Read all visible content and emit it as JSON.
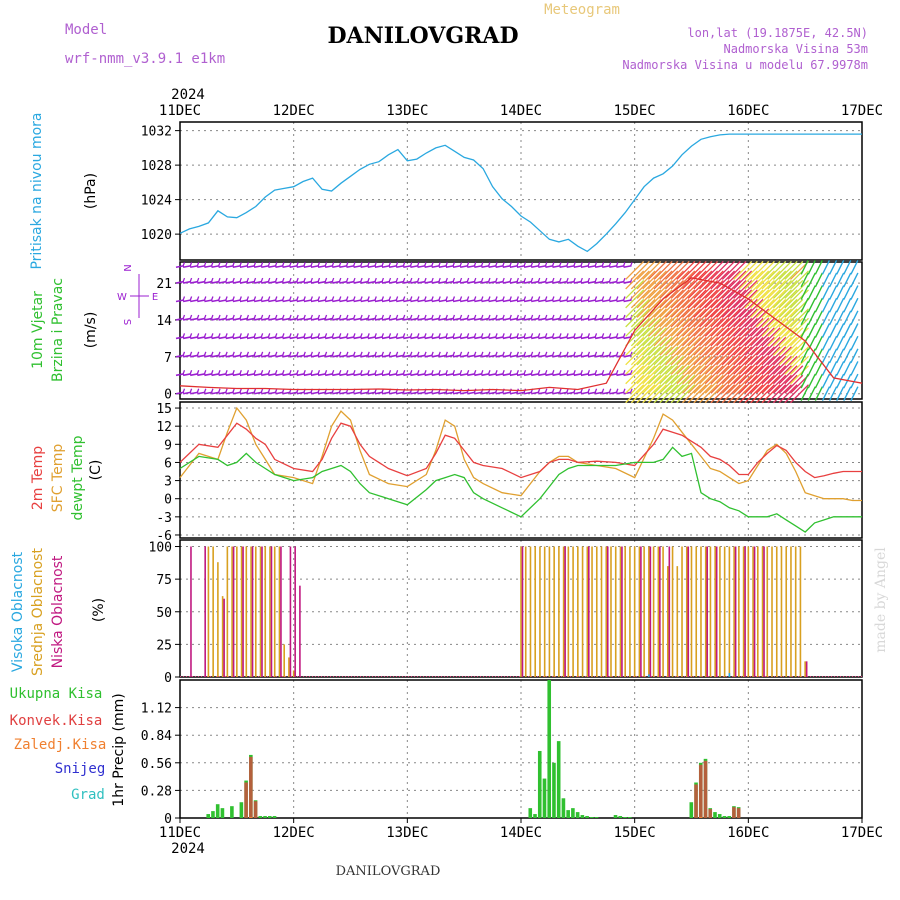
{
  "header": {
    "model_label": "Model",
    "model_name": "wrf-nmm_v3.9.1 e1km",
    "title": "DANILOVGRAD",
    "meteogram_label": "Meteogram",
    "lonlat": "lon,lat (19.1875E, 42.5N)",
    "elevation": "Nadmorska Visina 53m",
    "model_elevation": "Nadmorska Visina u modelu 67.9978m",
    "year_top": "2024",
    "year_bottom": "2024",
    "footer_title": "DANILOVGRAD",
    "credit": "made by Angel"
  },
  "colors": {
    "pressure": "#2aa8e0",
    "wind_barb": "#9b1fd0",
    "wind_speed": "#e03030",
    "temp_2m": "#e84040",
    "temp_sfc": "#e0a030",
    "dewpoint": "#30c030",
    "cloud_high": "#2aa8e0",
    "cloud_mid": "#d8a020",
    "cloud_low": "#c01880",
    "precip_total": "#30c030",
    "precip_conv": "#e04040",
    "precip_frozen": "#f08030",
    "snow": "#3030d0",
    "hail": "#30c0c0",
    "grid": "#888888"
  },
  "chart_data": [
    {
      "type": "line",
      "title": "Pritisak na nivou mora",
      "ylabel": "(hPa)",
      "ylim": [
        1017,
        1033
      ],
      "yticks": [
        "1020",
        "1024",
        "1028",
        "1032"
      ],
      "x_tick_labels": [
        "11DEC",
        "12DEC",
        "13DEC",
        "14DEC",
        "15DEC",
        "16DEC",
        "17DEC"
      ],
      "x_hours_range": [
        0,
        144
      ],
      "grid": true,
      "series": [
        {
          "name": "Pritisak na nivou mora",
          "x": [
            0,
            2,
            4,
            6,
            8,
            10,
            12,
            14,
            16,
            18,
            20,
            22,
            24,
            26,
            28,
            30,
            32,
            34,
            36,
            38,
            40,
            42,
            44,
            46,
            48,
            50,
            52,
            54,
            56,
            58,
            60,
            62,
            64,
            66,
            68,
            70,
            72,
            74,
            76,
            78,
            80,
            82,
            84,
            86,
            88,
            90,
            92,
            94,
            96,
            98,
            100,
            102,
            104,
            106,
            108,
            110,
            112,
            114,
            116,
            118,
            120,
            122,
            124,
            126,
            128,
            130,
            132,
            134,
            136,
            138,
            140,
            142,
            144
          ],
          "values": [
            1020.1,
            1020.6,
            1020.9,
            1021.3,
            1022.7,
            1022.0,
            1021.9,
            1022.5,
            1023.2,
            1024.3,
            1025.1,
            1025.3,
            1025.5,
            1026.1,
            1026.5,
            1025.2,
            1025.0,
            1025.9,
            1026.7,
            1027.5,
            1028.1,
            1028.4,
            1029.2,
            1029.8,
            1028.5,
            1028.7,
            1029.4,
            1030.0,
            1030.3,
            1029.6,
            1028.9,
            1028.6,
            1027.6,
            1025.5,
            1024.1,
            1023.2,
            1022.1,
            1021.4,
            1020.4,
            1019.4,
            1019.1,
            1019.4,
            1018.6,
            1018.0,
            1018.9,
            1020.0,
            1021.2,
            1022.5,
            1024.0,
            1025.5,
            1026.5,
            1027.0,
            1027.9,
            1029.2,
            1030.2,
            1031.0,
            1031.3,
            1031.5,
            1031.6,
            1031.6,
            1031.6,
            1031.6,
            1031.6,
            1031.6,
            1031.6,
            1031.6,
            1031.6,
            1031.6,
            1031.6,
            1031.6,
            1031.6,
            1031.6,
            1031.6
          ]
        }
      ]
    },
    {
      "type": "line",
      "title": "10m Vjetar Brzina i Pravac",
      "ylabel": "(m/s)",
      "ylim": [
        -1,
        25
      ],
      "yticks": [
        "0",
        "7",
        "14",
        "21"
      ],
      "compass": {
        "n": "N",
        "e": "E",
        "w": "W",
        "s": "S"
      },
      "grid": true,
      "series": [
        {
          "name": "10m Vjetar Brzina",
          "x": [
            0,
            6,
            12,
            18,
            24,
            30,
            36,
            42,
            48,
            54,
            60,
            66,
            72,
            78,
            84,
            90,
            96,
            102,
            108,
            114,
            120,
            126,
            132,
            138,
            144
          ],
          "values": [
            1.5,
            1.2,
            1.0,
            1.0,
            0.8,
            0.8,
            0.8,
            0.9,
            0.7,
            0.8,
            0.6,
            0.8,
            0.6,
            1.2,
            0.8,
            2.0,
            12.0,
            18.0,
            22.0,
            21.0,
            18.0,
            14.0,
            10.0,
            3.0,
            2.0
          ]
        }
      ]
    },
    {
      "type": "line",
      "ylabel": "(C)",
      "ylim": [
        -6.5,
        16
      ],
      "yticks": [
        "-6",
        "-3",
        "0",
        "3",
        "6",
        "9",
        "12",
        "15"
      ],
      "grid": true,
      "series": [
        {
          "name": "2m Temp",
          "x": [
            0,
            4,
            8,
            10,
            12,
            14,
            16,
            18,
            20,
            24,
            28,
            30,
            32,
            34,
            36,
            38,
            40,
            44,
            48,
            52,
            54,
            56,
            58,
            60,
            62,
            64,
            68,
            72,
            76,
            78,
            80,
            82,
            84,
            88,
            92,
            96,
            100,
            102,
            104,
            106,
            108,
            110,
            112,
            114,
            116,
            118,
            120,
            122,
            124,
            126,
            128,
            130,
            132,
            134,
            136,
            138,
            140,
            142,
            144
          ],
          "values": [
            6.0,
            9.0,
            8.5,
            10.5,
            12.5,
            11.5,
            10.0,
            9.0,
            6.5,
            5.0,
            4.5,
            6.5,
            10.0,
            12.5,
            12.0,
            9.0,
            7.0,
            5.0,
            3.8,
            5.0,
            7.5,
            10.5,
            10.0,
            8.0,
            6.0,
            5.5,
            5.0,
            3.5,
            4.5,
            6.0,
            6.5,
            6.5,
            6.0,
            6.2,
            6.0,
            5.5,
            9.0,
            11.5,
            11.0,
            10.5,
            9.5,
            8.5,
            7.0,
            6.5,
            5.5,
            4.0,
            4.0,
            6.0,
            7.5,
            8.8,
            8.0,
            6.0,
            4.5,
            3.5,
            3.8,
            4.2,
            4.5,
            4.5,
            4.5
          ]
        },
        {
          "name": "SFC Temp",
          "x": [
            0,
            4,
            8,
            10,
            12,
            14,
            16,
            18,
            20,
            24,
            28,
            30,
            32,
            34,
            36,
            38,
            40,
            44,
            48,
            52,
            54,
            56,
            58,
            60,
            62,
            64,
            68,
            72,
            76,
            78,
            80,
            82,
            84,
            88,
            92,
            96,
            100,
            102,
            104,
            106,
            108,
            110,
            112,
            114,
            116,
            118,
            120,
            122,
            124,
            126,
            128,
            130,
            132,
            134,
            136,
            138,
            140,
            142,
            144
          ],
          "values": [
            3.5,
            7.5,
            6.5,
            11.0,
            15.0,
            13.0,
            9.0,
            6.5,
            4.0,
            3.5,
            2.5,
            7.0,
            12.0,
            14.5,
            13.0,
            8.0,
            4.0,
            2.5,
            2.0,
            4.0,
            8.0,
            13.0,
            12.0,
            6.5,
            3.5,
            2.5,
            1.0,
            0.5,
            4.5,
            6.0,
            7.0,
            7.0,
            6.0,
            5.5,
            5.0,
            3.5,
            10.0,
            14.0,
            13.0,
            11.0,
            9.0,
            7.0,
            5.0,
            4.5,
            3.5,
            2.5,
            3.0,
            5.5,
            8.0,
            9.0,
            7.5,
            4.5,
            1.0,
            0.5,
            0.0,
            0.0,
            0.0,
            -0.3,
            -0.3
          ]
        },
        {
          "name": "dewpt Temp",
          "x": [
            0,
            4,
            8,
            10,
            12,
            14,
            16,
            18,
            20,
            24,
            28,
            30,
            32,
            34,
            36,
            38,
            40,
            44,
            48,
            52,
            54,
            56,
            58,
            60,
            62,
            64,
            68,
            72,
            76,
            78,
            80,
            82,
            84,
            88,
            92,
            96,
            100,
            102,
            104,
            106,
            108,
            110,
            112,
            114,
            116,
            118,
            120,
            122,
            124,
            126,
            128,
            130,
            132,
            134,
            136,
            138,
            140,
            142,
            144
          ],
          "values": [
            5.0,
            7.0,
            6.5,
            5.5,
            6.0,
            7.5,
            6.0,
            5.0,
            4.0,
            3.0,
            3.5,
            4.5,
            5.0,
            5.5,
            4.5,
            2.5,
            1.0,
            0.0,
            -1.0,
            1.5,
            3.0,
            3.5,
            4.0,
            3.5,
            1.0,
            0.0,
            -1.5,
            -3.0,
            0.0,
            2.0,
            4.0,
            5.0,
            5.5,
            5.5,
            5.5,
            6.0,
            6.0,
            6.5,
            8.5,
            7.0,
            7.5,
            1.0,
            0.0,
            -0.5,
            -1.5,
            -2.0,
            -3.0,
            -3.0,
            -3.0,
            -2.5,
            -3.5,
            -4.5,
            -5.5,
            -4.0,
            -3.5,
            -3.0,
            -3.0,
            -3.0,
            -3.0
          ]
        }
      ]
    },
    {
      "type": "bar",
      "ylabel": "(%)",
      "ylim": [
        0,
        105
      ],
      "yticks": [
        "0",
        "25",
        "50",
        "75",
        "100"
      ],
      "grid": true,
      "series": [
        {
          "name": "Visoka Oblacnost",
          "x": [
            99,
            116
          ],
          "values": [
            2,
            3
          ]
        },
        {
          "name": "Srednja Oblacnost",
          "x": [
            6,
            7,
            8,
            9,
            10,
            11,
            12,
            13,
            14,
            15,
            16,
            17,
            18,
            19,
            20,
            21,
            22,
            23,
            24,
            72,
            73,
            74,
            75,
            76,
            77,
            78,
            79,
            80,
            81,
            82,
            83,
            84,
            85,
            86,
            87,
            88,
            89,
            90,
            91,
            92,
            93,
            94,
            95,
            96,
            97,
            98,
            99,
            100,
            101,
            102,
            103,
            104,
            105,
            106,
            107,
            108,
            109,
            110,
            111,
            112,
            113,
            114,
            115,
            116,
            117,
            118,
            119,
            120,
            121,
            122,
            123,
            124,
            125,
            126,
            127,
            128,
            129,
            130,
            131,
            132
          ],
          "values": [
            100,
            100,
            88,
            62,
            100,
            100,
            100,
            100,
            100,
            100,
            100,
            100,
            100,
            100,
            100,
            100,
            25,
            15,
            5,
            100,
            100,
            100,
            100,
            100,
            100,
            100,
            100,
            100,
            100,
            100,
            100,
            100,
            100,
            100,
            100,
            100,
            100,
            100,
            100,
            100,
            100,
            100,
            100,
            100,
            100,
            100,
            100,
            100,
            100,
            100,
            85,
            100,
            85,
            100,
            100,
            100,
            100,
            100,
            100,
            100,
            100,
            100,
            100,
            100,
            100,
            100,
            100,
            100,
            100,
            100,
            100,
            100,
            100,
            100,
            100,
            100,
            100,
            100,
            100,
            12
          ]
        },
        {
          "name": "Niska Oblacnost",
          "x": [
            2,
            5,
            9,
            11,
            13,
            15,
            17,
            19,
            21,
            23,
            24,
            25,
            72,
            81,
            86,
            90,
            93,
            97,
            99,
            101,
            103,
            107,
            111,
            113,
            117,
            119,
            121,
            123,
            132
          ],
          "values": [
            100,
            100,
            60,
            100,
            100,
            100,
            100,
            100,
            100,
            100,
            100,
            70,
            100,
            100,
            100,
            100,
            100,
            100,
            100,
            100,
            100,
            100,
            100,
            100,
            100,
            100,
            100,
            100,
            12
          ]
        }
      ]
    },
    {
      "type": "bar",
      "ylabel": "1hr Precip (mm)",
      "ylim": [
        0,
        1.4
      ],
      "yticks": [
        "0",
        "0.28",
        "0.56",
        "0.84",
        "1.12"
      ],
      "grid": true,
      "series": [
        {
          "name": "Ukupna Kisa",
          "x": [
            6,
            7,
            8,
            9,
            11,
            13,
            14,
            15,
            16,
            17,
            18,
            19,
            20,
            74,
            75,
            76,
            77,
            78,
            79,
            80,
            81,
            82,
            83,
            84,
            85,
            86,
            87,
            88,
            92,
            93,
            94,
            95,
            108,
            109,
            110,
            111,
            112,
            113,
            114,
            115,
            116,
            117,
            118
          ],
          "values": [
            0.04,
            0.07,
            0.14,
            0.1,
            0.12,
            0.16,
            0.38,
            0.64,
            0.18,
            0.02,
            0.02,
            0.02,
            0.02,
            0.1,
            0.04,
            0.68,
            0.4,
            1.4,
            0.56,
            0.78,
            0.2,
            0.08,
            0.1,
            0.06,
            0.03,
            0.02,
            0.01,
            0.01,
            0.03,
            0.02,
            0.01,
            0.01,
            0.16,
            0.36,
            0.56,
            0.6,
            0.1,
            0.06,
            0.04,
            0.02,
            0.02,
            0.12,
            0.11
          ]
        },
        {
          "name": "Konvek.Kisa",
          "x": [
            14,
            15,
            16,
            109,
            110,
            111,
            112,
            117,
            118
          ],
          "values": [
            0.36,
            0.62,
            0.17,
            0.34,
            0.54,
            0.58,
            0.09,
            0.11,
            0.1
          ]
        },
        {
          "name": "Zaledj.Kisa",
          "x": [
            15,
            110
          ],
          "values": [
            0.01,
            0.01
          ]
        },
        {
          "name": "Snijeg",
          "x": [],
          "values": []
        },
        {
          "name": "Grad",
          "x": [],
          "values": []
        }
      ]
    }
  ]
}
